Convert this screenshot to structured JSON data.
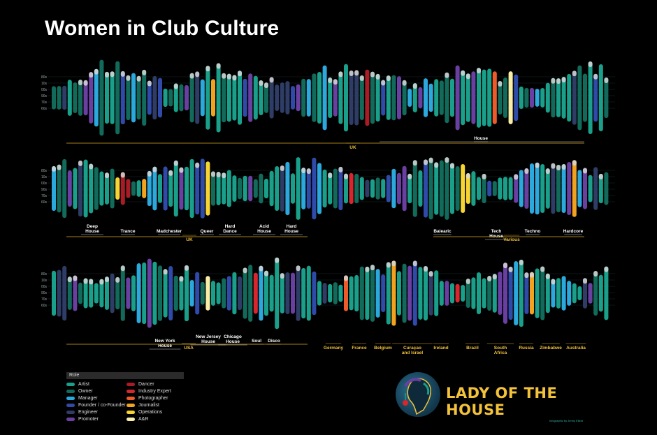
{
  "title": "Women in Club Culture",
  "legend": {
    "heading": "Role",
    "items": [
      {
        "label": "Artist",
        "color": "#1aa08a"
      },
      {
        "label": "Dancer",
        "color": "#a81c26"
      },
      {
        "label": "Owner",
        "color": "#126b5a"
      },
      {
        "label": "Industry Expert",
        "color": "#d8262e"
      },
      {
        "label": "Manager",
        "color": "#2ba8dc"
      },
      {
        "label": "Photographer",
        "color": "#ee5a2a"
      },
      {
        "label": "Founder / co-Founder",
        "color": "#2f4aa8"
      },
      {
        "label": "Journalist",
        "color": "#f2a21e"
      },
      {
        "label": "Engineer",
        "color": "#2e3c66"
      },
      {
        "label": "Operations",
        "color": "#f6d434"
      },
      {
        "label": "Promoter",
        "color": "#6a3fa2"
      },
      {
        "label": "A&R",
        "color": "#f8eea8"
      }
    ]
  },
  "logo": {
    "name": "LADY OF THE HOUSE"
  },
  "credit": "Infographic by Jenny Elliott",
  "chart_data": {
    "type": "bar",
    "decade_labels": [
      "80s",
      "90s",
      "00s",
      "10s",
      "70s",
      "60s"
    ],
    "rows": [
      {
        "decade_ticks": [
          "80s",
          "10s",
          "00s",
          "90s",
          "70s",
          "60s"
        ],
        "sections": [
          {
            "label": "UK",
            "color": "#f2c23a"
          },
          {
            "label": "House",
            "color": "#ffffff"
          }
        ]
      },
      {
        "decade_ticks": [
          "80s",
          "10s",
          "00s",
          "90s",
          "70s",
          "60s"
        ],
        "sections": [
          {
            "label": "Deep House",
            "color": "#ffffff"
          },
          {
            "label": "Trance",
            "color": "#ffffff"
          },
          {
            "label": "Madchester",
            "color": "#ffffff"
          },
          {
            "label": "Queer",
            "color": "#ffffff"
          },
          {
            "label": "Hard Dance",
            "color": "#ffffff"
          },
          {
            "label": "Acid House",
            "color": "#ffffff"
          },
          {
            "label": "Hard House",
            "color": "#ffffff"
          },
          {
            "label": "UK",
            "color": "#f2c23a"
          },
          {
            "label": "Balearic",
            "color": "#ffffff"
          },
          {
            "label": "Tech House",
            "color": "#ffffff"
          },
          {
            "label": "Techno",
            "color": "#ffffff"
          },
          {
            "label": "Hardcore",
            "color": "#ffffff"
          },
          {
            "label": "Various",
            "color": "#f2c23a"
          }
        ]
      },
      {
        "decade_ticks": [
          "80s",
          "10s",
          "00s",
          "90s",
          "70s",
          "60s"
        ],
        "sections": [
          {
            "label": "New York House",
            "color": "#ffffff"
          },
          {
            "label": "New Jersey House",
            "color": "#ffffff"
          },
          {
            "label": "Chicago House",
            "color": "#ffffff"
          },
          {
            "label": "Soul",
            "color": "#ffffff"
          },
          {
            "label": "Disco",
            "color": "#ffffff"
          },
          {
            "label": "USA",
            "color": "#f2c23a"
          },
          {
            "label": "Germany",
            "color": "#f2c23a"
          },
          {
            "label": "France",
            "color": "#f2c23a"
          },
          {
            "label": "Belgium",
            "color": "#f2c23a"
          },
          {
            "label": "Curaçao and Israel",
            "color": "#f2c23a"
          },
          {
            "label": "Ireland",
            "color": "#f2c23a"
          },
          {
            "label": "Brazil",
            "color": "#f2c23a"
          },
          {
            "label": "South Africa",
            "color": "#f2c23a"
          },
          {
            "label": "Russia",
            "color": "#f2c23a"
          },
          {
            "label": "Zimbabwe",
            "color": "#f2c23a"
          },
          {
            "label": "Australia",
            "color": "#f2c23a"
          }
        ]
      }
    ]
  }
}
